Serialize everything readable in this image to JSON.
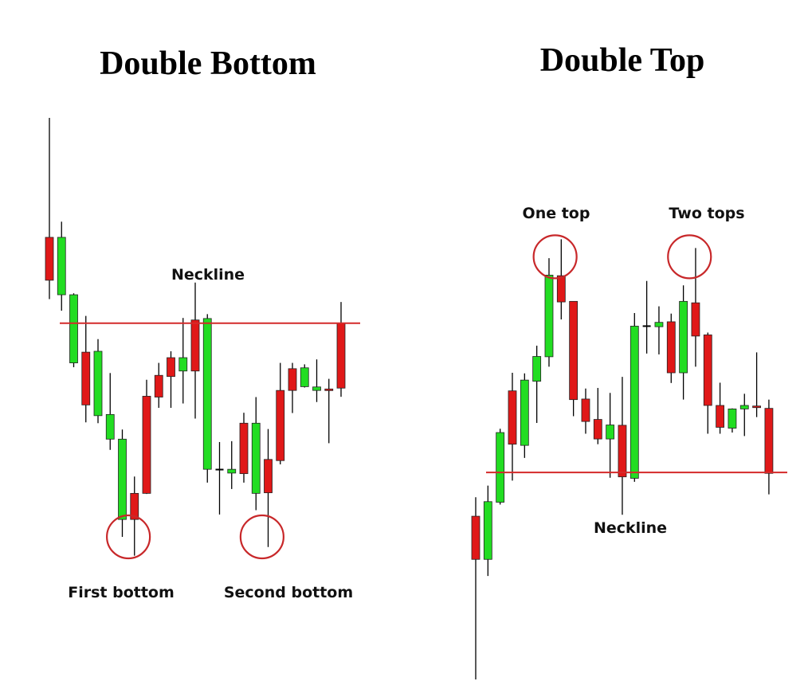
{
  "colors": {
    "bull": "#22dd22",
    "bear": "#e01818",
    "neckline": "#d42a2a",
    "circle": "#c8282a",
    "wick": "#000000"
  },
  "chart_data": [
    {
      "type": "candlestick",
      "title": "Double Bottom",
      "annotations": {
        "neckline": "Neckline",
        "first": "First bottom",
        "second": "Second bottom"
      },
      "neckline_level": 86.7,
      "circled_candles": [
        7,
        18
      ],
      "circle_level": 13,
      "candles": [
        {
          "color": "red",
          "high": 157.5,
          "top": 116.3,
          "bottom": 101.5,
          "low": 95
        },
        {
          "color": "green",
          "high": 121.7,
          "top": 116.3,
          "bottom": 96.5,
          "low": 91
        },
        {
          "color": "green",
          "high": 97,
          "top": 96.5,
          "bottom": 73,
          "low": 71.5
        },
        {
          "color": "red",
          "high": 89.2,
          "top": 76.7,
          "bottom": 58.5,
          "low": 52.5
        },
        {
          "color": "green",
          "high": 81.2,
          "top": 77,
          "bottom": 54.8,
          "low": 52.2
        },
        {
          "color": "green",
          "high": 69.5,
          "top": 55.2,
          "bottom": 46.7,
          "low": 43
        },
        {
          "color": "green",
          "high": 50,
          "top": 46.7,
          "bottom": 19,
          "low": 13
        },
        {
          "color": "red",
          "high": 33.8,
          "top": 28,
          "bottom": 19,
          "low": 6.5
        },
        {
          "color": "red",
          "high": 67.2,
          "top": 61.5,
          "bottom": 28,
          "low": 27.8
        },
        {
          "color": "red",
          "high": 73,
          "top": 68.7,
          "bottom": 61.2,
          "low": 57.5
        },
        {
          "color": "red",
          "high": 77,
          "top": 74.8,
          "bottom": 68.3,
          "low": 57.5
        },
        {
          "color": "green",
          "high": 88.5,
          "top": 74.8,
          "bottom": 70.2,
          "low": 59
        },
        {
          "color": "red",
          "high": 100.7,
          "top": 87.8,
          "bottom": 70.2,
          "low": 53.8
        },
        {
          "color": "green",
          "high": 89.8,
          "top": 88.3,
          "bottom": 36.3,
          "low": 31.7
        },
        {
          "color": "doji",
          "high": 45.7,
          "top": 36.2,
          "bottom": 36.2,
          "low": 20.7
        },
        {
          "color": "green",
          "high": 46,
          "top": 36.3,
          "bottom": 35,
          "low": 29.5
        },
        {
          "color": "red",
          "high": 55.8,
          "top": 52.2,
          "bottom": 34.8,
          "low": 31.7
        },
        {
          "color": "green",
          "high": 61.2,
          "top": 52.2,
          "bottom": 28,
          "low": 22.2
        },
        {
          "color": "red",
          "high": 50.2,
          "top": 39.7,
          "bottom": 28.2,
          "low": 9.5
        },
        {
          "color": "red",
          "high": 73,
          "top": 63.5,
          "bottom": 39.3,
          "low": 38
        },
        {
          "color": "red",
          "high": 73,
          "top": 71,
          "bottom": 63.5,
          "low": 55.7
        },
        {
          "color": "green",
          "high": 72.5,
          "top": 71.3,
          "bottom": 64.8,
          "low": 64.5
        },
        {
          "color": "green",
          "high": 74.2,
          "top": 64.7,
          "bottom": 63.5,
          "low": 59.5
        },
        {
          "color": "red",
          "high": 67.5,
          "top": 64,
          "bottom": 63.7,
          "low": 45.3
        },
        {
          "color": "red",
          "high": 94,
          "top": 86.7,
          "bottom": 64.3,
          "low": 61.3
        }
      ]
    },
    {
      "type": "candlestick",
      "title": "Double Top",
      "annotations": {
        "first": "One top",
        "second": "Two tops",
        "neckline": "Neckline"
      },
      "neckline_level": 77,
      "circled_candles": [
        7,
        18
      ],
      "circle_level": 151,
      "candles": [
        {
          "color": "red",
          "high": 68.5,
          "top": 62,
          "bottom": 47.2,
          "low": 6
        },
        {
          "color": "green",
          "high": 72.5,
          "top": 67,
          "bottom": 47.2,
          "low": 41.5
        },
        {
          "color": "green",
          "high": 92,
          "top": 90.7,
          "bottom": 66.8,
          "low": 66
        },
        {
          "color": "red",
          "high": 111.2,
          "top": 105,
          "bottom": 86.7,
          "low": 74.2
        },
        {
          "color": "green",
          "high": 111,
          "top": 108.7,
          "bottom": 86.3,
          "low": 82
        },
        {
          "color": "green",
          "high": 120.5,
          "top": 116.8,
          "bottom": 108.3,
          "low": 94
        },
        {
          "color": "green",
          "high": 150.5,
          "top": 144.7,
          "bottom": 116.7,
          "low": 113.3
        },
        {
          "color": "red",
          "high": 157,
          "top": 144.5,
          "bottom": 135.5,
          "low": 129.5
        },
        {
          "color": "red",
          "high": 135.8,
          "top": 135.7,
          "bottom": 102,
          "low": 96.3
        },
        {
          "color": "red",
          "high": 105.8,
          "top": 102.2,
          "bottom": 94.5,
          "low": 90.3
        },
        {
          "color": "red",
          "high": 106,
          "top": 95.2,
          "bottom": 88.5,
          "low": 86.7
        },
        {
          "color": "green",
          "high": 104.3,
          "top": 93.3,
          "bottom": 88.5,
          "low": 75.2
        },
        {
          "color": "red",
          "high": 109.8,
          "top": 93.2,
          "bottom": 75.5,
          "low": 62.5
        },
        {
          "color": "green",
          "high": 131.7,
          "top": 127.2,
          "bottom": 75,
          "low": 73.8
        },
        {
          "color": "doji",
          "high": 142.7,
          "top": 127.2,
          "bottom": 127.2,
          "low": 117.8
        },
        {
          "color": "green",
          "high": 134,
          "top": 128.5,
          "bottom": 127,
          "low": 117.5
        },
        {
          "color": "red",
          "high": 131.5,
          "top": 128.7,
          "bottom": 111.2,
          "low": 107.7
        },
        {
          "color": "green",
          "high": 141.2,
          "top": 135.7,
          "bottom": 111.2,
          "low": 102
        },
        {
          "color": "red",
          "high": 154,
          "top": 135.2,
          "bottom": 123.8,
          "low": 113.3
        },
        {
          "color": "red",
          "high": 125,
          "top": 124.2,
          "bottom": 100,
          "low": 90.3
        },
        {
          "color": "red",
          "high": 107.8,
          "top": 100,
          "bottom": 92.5,
          "low": 90.3
        },
        {
          "color": "green",
          "high": 99,
          "top": 98.8,
          "bottom": 92.2,
          "low": 90.7
        },
        {
          "color": "green",
          "high": 104,
          "top": 100,
          "bottom": 98.8,
          "low": 89.5
        },
        {
          "color": "red",
          "high": 118.2,
          "top": 99.8,
          "bottom": 99.3,
          "low": 96
        },
        {
          "color": "red",
          "high": 102,
          "top": 99,
          "bottom": 76.7,
          "low": 69.5
        }
      ]
    }
  ]
}
